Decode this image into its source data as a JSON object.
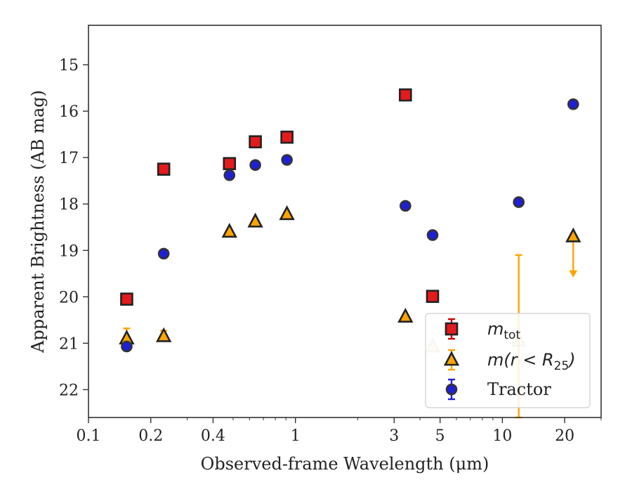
{
  "chart_data": {
    "type": "scatter",
    "xscale": "log",
    "xlim": [
      0.1,
      30
    ],
    "ylim": [
      22.6,
      14.15
    ],
    "y_inverted": true,
    "xlabel": "Observed-frame Wavelength (μm)",
    "ylabel": "Apparent Brightness (AB mag)",
    "x_ticks": [
      {
        "value": 0.1,
        "label": "0.1"
      },
      {
        "value": 0.2,
        "label": "0.2"
      },
      {
        "value": 0.4,
        "label": "0.4"
      },
      {
        "value": 1,
        "label": "1"
      },
      {
        "value": 3,
        "label": "3"
      },
      {
        "value": 5,
        "label": "5"
      },
      {
        "value": 10,
        "label": "10"
      },
      {
        "value": 20,
        "label": "20"
      }
    ],
    "y_ticks": [
      {
        "value": 15,
        "label": "15"
      },
      {
        "value": 16,
        "label": "16"
      },
      {
        "value": 17,
        "label": "17"
      },
      {
        "value": 18,
        "label": "18"
      },
      {
        "value": 19,
        "label": "19"
      },
      {
        "value": 20,
        "label": "20"
      },
      {
        "value": 21,
        "label": "21"
      },
      {
        "value": 22,
        "label": "22"
      }
    ],
    "grid": false,
    "legend_position": "lower right",
    "series": [
      {
        "name": "m_tot",
        "label_main": "m",
        "label_sub": "tot",
        "marker": "square",
        "color": "#e41a1c",
        "errcolor": "#d40000",
        "points": [
          {
            "x": 0.153,
            "y": 20.05
          },
          {
            "x": 0.231,
            "y": 17.25
          },
          {
            "x": 0.48,
            "y": 17.13
          },
          {
            "x": 0.64,
            "y": 16.66
          },
          {
            "x": 0.91,
            "y": 16.56
          },
          {
            "x": 3.4,
            "y": 15.65
          },
          {
            "x": 4.6,
            "y": 19.99
          }
        ]
      },
      {
        "name": "m(r < R25)",
        "label_main": "m(r < R",
        "label_sub": "25",
        "label_tail": ")",
        "marker": "triangle",
        "color": "#ffa500",
        "errcolor": "#ffa500",
        "points": [
          {
            "x": 0.153,
            "y": 20.9,
            "err": 0.22
          },
          {
            "x": 0.231,
            "y": 20.85,
            "err": 0.12
          },
          {
            "x": 0.48,
            "y": 18.6
          },
          {
            "x": 0.64,
            "y": 18.38
          },
          {
            "x": 0.91,
            "y": 18.22
          },
          {
            "x": 3.4,
            "y": 20.43
          },
          {
            "x": 4.6,
            "y": 21.07,
            "faded": true
          },
          {
            "x": 12.0,
            "y": 20.95,
            "faded": true,
            "err_up": 1.85
          },
          {
            "x": 22.0,
            "y": 18.7,
            "upper_limit": true
          }
        ]
      },
      {
        "name": "Tractor",
        "label_main": "Tractor",
        "marker": "circle",
        "color": "#1f1fd6",
        "errcolor": "#1f1fd6",
        "points": [
          {
            "x": 0.153,
            "y": 21.07
          },
          {
            "x": 0.231,
            "y": 19.07
          },
          {
            "x": 0.48,
            "y": 17.38
          },
          {
            "x": 0.64,
            "y": 17.16
          },
          {
            "x": 0.91,
            "y": 17.05
          },
          {
            "x": 3.4,
            "y": 18.04
          },
          {
            "x": 4.6,
            "y": 18.67
          },
          {
            "x": 12.0,
            "y": 17.96
          },
          {
            "x": 22.0,
            "y": 15.85
          }
        ]
      }
    ]
  }
}
